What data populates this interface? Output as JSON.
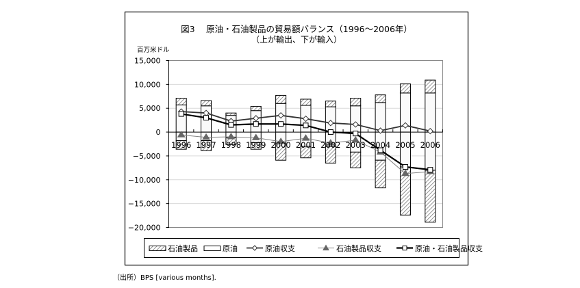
{
  "chart_data": {
    "type": "bar",
    "title": "図3　 原油・石油製品の貿易額バランス（1996～2006年）",
    "subtitle": "（上が輸出、下が輸入）",
    "ylabel": "百万米ドル",
    "xlabel": "",
    "ylim": [
      -20000,
      15000
    ],
    "yticks": [
      15000,
      10000,
      5000,
      0,
      -5000,
      -10000,
      -15000,
      -20000
    ],
    "ytick_labels": [
      "15,000",
      "10,000",
      "5,000",
      "0",
      "−5,000",
      "−10,000",
      "−15,000",
      "−20,000"
    ],
    "grid": true,
    "legend_position": "bottom",
    "categories": [
      "1996",
      "1997",
      "1998",
      "1999",
      "2000",
      "2001",
      "2002",
      "2003",
      "2004",
      "2005",
      "2006"
    ],
    "series": [
      {
        "name": "石油製品",
        "kind": "stacked-bar-hatched",
        "export": [
          1400,
          1100,
          500,
          900,
          1700,
          1300,
          1200,
          1600,
          1600,
          1900,
          2700
        ],
        "import": [
          -1800,
          -2100,
          -1400,
          -1400,
          -3600,
          -2400,
          -3500,
          -3300,
          -5800,
          -10100,
          -10900
        ]
      },
      {
        "name": "原油",
        "kind": "stacked-bar-plain",
        "export": [
          5700,
          5500,
          3500,
          4500,
          6000,
          5600,
          5300,
          5500,
          6200,
          8200,
          8200
        ],
        "import": [
          -1800,
          -1800,
          -1200,
          -2200,
          -2300,
          -3000,
          -3000,
          -4200,
          -5900,
          -7300,
          -8000
        ]
      },
      {
        "name": "原油収支",
        "kind": "line-diamond",
        "values": [
          4300,
          4000,
          2300,
          2900,
          3500,
          2800,
          1900,
          1600,
          300,
          1400,
          200
        ]
      },
      {
        "name": "石油製品収支",
        "kind": "line-triangle",
        "values": [
          -600,
          -1100,
          -1000,
          -1200,
          -2000,
          -1300,
          -2300,
          -1700,
          -4200,
          -8700,
          -8300
        ]
      },
      {
        "name": "原油・石油製品収支",
        "kind": "line-square",
        "values": [
          3800,
          3000,
          1500,
          1700,
          1700,
          1400,
          0,
          -300,
          -3800,
          -7300,
          -7900
        ]
      }
    ],
    "colors": {
      "hatch": "#808080",
      "bar_fill": "#fafafa",
      "diamond_line": "#333333",
      "triangle_line": "#808080",
      "square_line": "#000000",
      "grid": "#d9d9d9"
    }
  },
  "footer": {
    "source": "（出所）BPS [various months]."
  }
}
